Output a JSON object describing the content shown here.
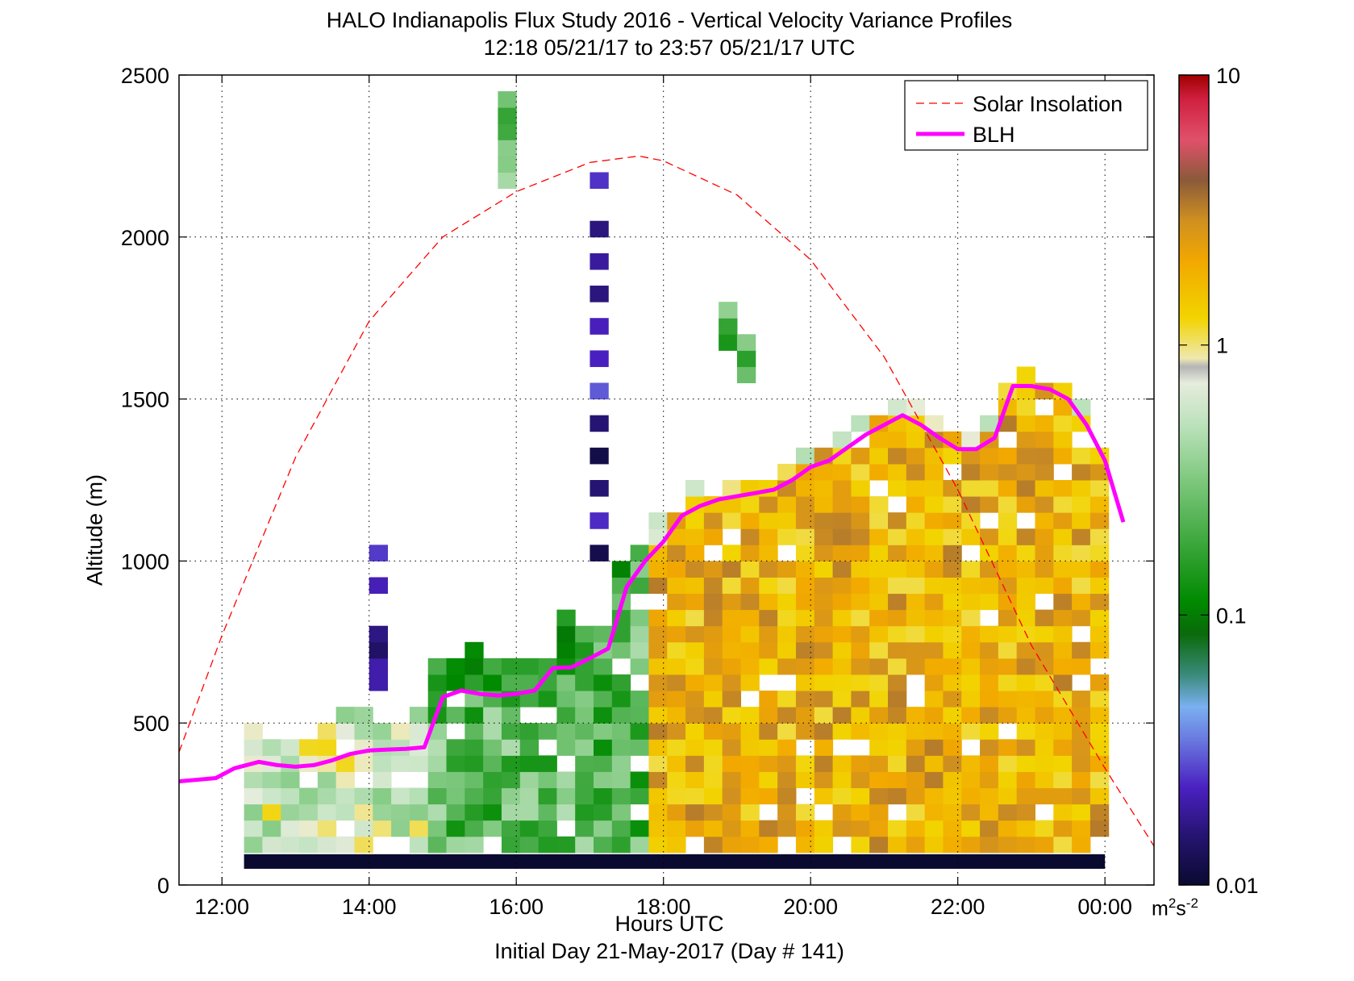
{
  "chart_data": {
    "type": "heatmap",
    "title": "HALO Indianapolis Flux Study 2016 - Vertical Velocity Variance Profiles",
    "subtitle": "12:18 05/21/17 to 23:57 05/21/17  UTC",
    "xlabel": "Hours UTC",
    "xlabel2": "Initial Day 21-May-2017 (Day # 141)",
    "ylabel": "Altitude (m)",
    "x_range": [
      "11:25",
      "00:40"
    ],
    "ylim": [
      0,
      2500
    ],
    "x_ticks": [
      "12:00",
      "14:00",
      "16:00",
      "18:00",
      "20:00",
      "22:00",
      "00:00"
    ],
    "y_ticks": [
      "0",
      "500",
      "1000",
      "1500",
      "2000",
      "2500"
    ],
    "grid": true,
    "legend_position": "top-right",
    "colorbar": {
      "scale": "log",
      "range": [
        0.01,
        10
      ],
      "tick_labels": [
        "0.01",
        "0.1",
        "1",
        "10"
      ],
      "unit_base": "m",
      "unit_exp1": "2",
      "unit_mid": "s",
      "unit_exp2": "-2"
    },
    "series": [
      {
        "name": "Solar Insolation",
        "style": "dashed",
        "color": "#ff0000",
        "shape": "arc peaking at 17:40 UTC near 2250 m on the altitude axis",
        "x": [
          "11:25",
          "12:00",
          "13:00",
          "14:00",
          "15:00",
          "16:00",
          "17:00",
          "17:40",
          "18:00",
          "19:00",
          "20:00",
          "21:00",
          "22:00",
          "23:00",
          "00:00",
          "00:40"
        ],
        "y": [
          410,
          770,
          1320,
          1740,
          2000,
          2140,
          2230,
          2250,
          2235,
          2130,
          1930,
          1630,
          1220,
          740,
          360,
          120
        ]
      },
      {
        "name": "BLH",
        "style": "solid",
        "color": "#ff00ff",
        "x": [
          "11:25",
          "11:55",
          "12:10",
          "12:30",
          "12:45",
          "13:00",
          "13:15",
          "13:30",
          "13:45",
          "14:00",
          "14:15",
          "14:30",
          "14:45",
          "15:00",
          "15:15",
          "15:30",
          "15:45",
          "16:00",
          "16:15",
          "16:30",
          "16:45",
          "17:00",
          "17:15",
          "17:30",
          "17:45",
          "18:00",
          "18:15",
          "18:30",
          "18:45",
          "19:00",
          "19:15",
          "19:30",
          "19:45",
          "20:00",
          "20:15",
          "20:30",
          "20:45",
          "21:00",
          "21:15",
          "21:30",
          "21:45",
          "22:00",
          "22:15",
          "22:30",
          "22:45",
          "23:00",
          "23:15",
          "23:30",
          "23:45",
          "00:00",
          "00:15"
        ],
        "y": [
          320,
          330,
          360,
          380,
          370,
          365,
          370,
          385,
          405,
          415,
          418,
          420,
          425,
          580,
          600,
          590,
          585,
          590,
          600,
          670,
          672,
          700,
          730,
          920,
          1000,
          1060,
          1140,
          1170,
          1190,
          1200,
          1210,
          1220,
          1250,
          1290,
          1310,
          1350,
          1390,
          1420,
          1450,
          1420,
          1380,
          1345,
          1345,
          1380,
          1540,
          1540,
          1530,
          1500,
          1420,
          1310,
          1120
        ]
      }
    ],
    "heatmap_summary": "Per-profile vertical velocity variance columns from about 12:15 to 00:00 UTC; values mostly 0.1-1 m2/s2 (green to orange) below the BLH, purple/dark (0.01-0.03) at isolated higher levels near 14:00 and 17:00 UTC."
  }
}
